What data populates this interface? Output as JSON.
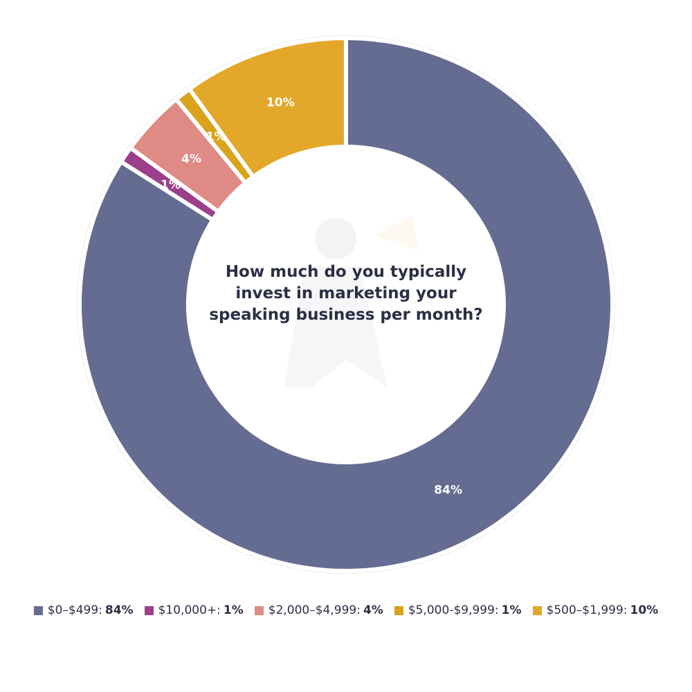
{
  "chart_data": {
    "type": "pie",
    "title": "How much do you typically invest in marketing your speaking business per month?",
    "slices": [
      {
        "label": "$0–$499",
        "value": 84,
        "display": "84%",
        "color": "#656c91"
      },
      {
        "label": "$10,000+",
        "value": 1,
        "display": "1%",
        "color": "#9b3f8b"
      },
      {
        "label": "$2,000–$4,999",
        "value": 4,
        "display": "4%",
        "color": "#e08a86"
      },
      {
        "label": "$5,000-$9,999",
        "value": 1,
        "display": "1%",
        "color": "#d9a31e"
      },
      {
        "label": "$500–$1,999",
        "value": 10,
        "display": "10%",
        "color": "#e3a72a"
      }
    ],
    "legend_position": "bottom"
  },
  "legend": [
    {
      "label": "$0–$499:",
      "value": "84%",
      "color": "#656c91"
    },
    {
      "label": "$10,000+:",
      "value": "1%",
      "color": "#9b3f8b"
    },
    {
      "label": "$2,000–$4,999:",
      "value": "4%",
      "color": "#e08a86"
    },
    {
      "label": "$5,000-$9,999:",
      "value": "1%",
      "color": "#d9a31e"
    },
    {
      "label": "$500–$1,999:",
      "value": "10%",
      "color": "#e3a72a"
    }
  ]
}
